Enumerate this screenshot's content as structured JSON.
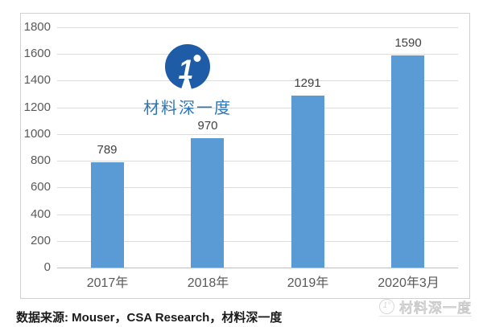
{
  "center_watermark": {
    "badge_digit": "1",
    "brand_text": "材料深一度"
  },
  "bottom_watermark": {
    "text": "材料深一度"
  },
  "footer": {
    "source_text": "数据来源: Mouser，CSA Research，材料深一度"
  },
  "colors": {
    "bar": "#5B9BD5",
    "gridline": "#DCDCDC",
    "axis_line": "#BFBFBF",
    "tick_label": "#595959",
    "data_label": "#404040",
    "frame_border": "#D0D0D0",
    "logo_blue": "#1E5CA8",
    "brand_text_blue": "#2E75B6",
    "watermark_gray": "#C9C9C9"
  },
  "chart_data": {
    "type": "bar",
    "title": "",
    "categories": [
      "2017年",
      "2018年",
      "2019年",
      "2020年3月"
    ],
    "values": [
      789,
      970,
      1291,
      1590
    ],
    "yticks": [
      0,
      200,
      400,
      600,
      800,
      1000,
      1200,
      1400,
      1600,
      1800
    ],
    "ylim": [
      0,
      1800
    ],
    "grid": true,
    "data_labels": true,
    "legend": "none"
  }
}
